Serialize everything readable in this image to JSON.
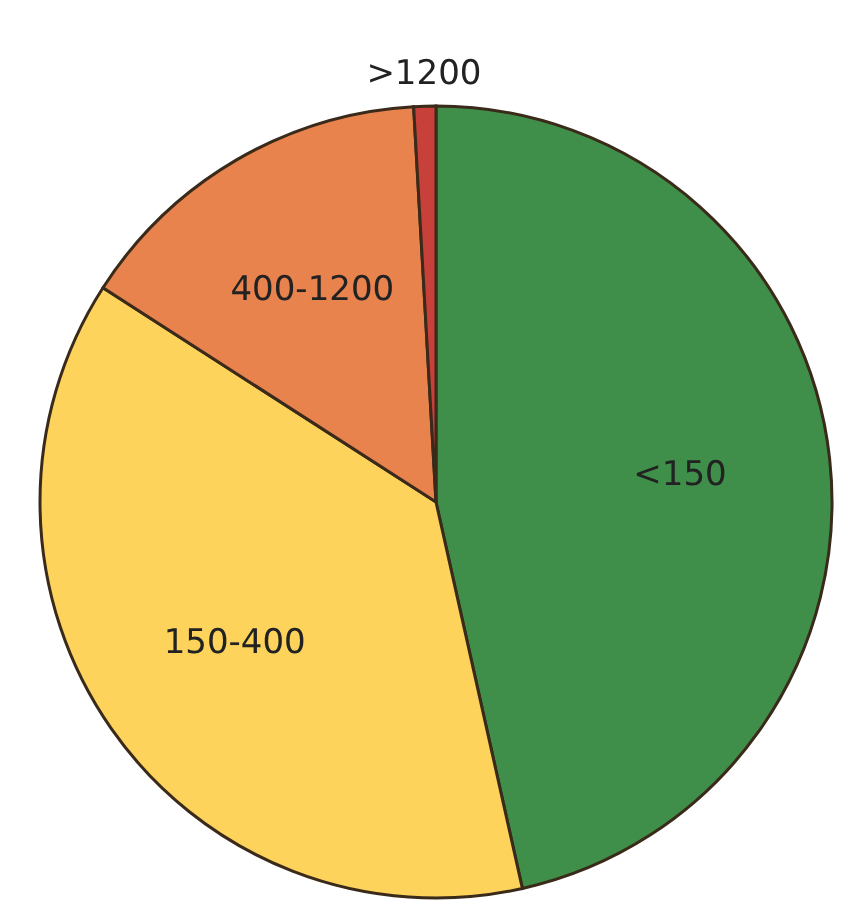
{
  "chart_data": {
    "type": "pie",
    "categories": [
      "<150",
      "150-400",
      "400-1200",
      ">1200"
    ],
    "values": [
      46.5,
      37.6,
      15,
      0.9
    ],
    "colors": [
      "#3f8f4a",
      "#fdd35c",
      "#e8834e",
      "#c8403a"
    ]
  }
}
